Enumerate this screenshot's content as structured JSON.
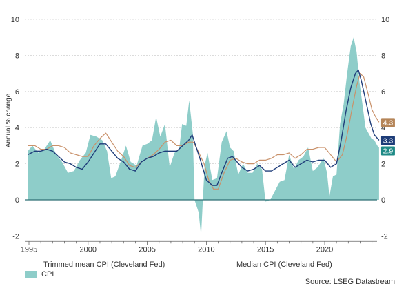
{
  "chart_data": {
    "type": "line",
    "ylabel": "Annual % change",
    "ylim": [
      -2.3,
      10.2
    ],
    "yticks": [
      "-2",
      "0",
      "2",
      "4",
      "6",
      "8",
      "10"
    ],
    "xticks": [
      "1995",
      "2000",
      "2005",
      "2010",
      "2015",
      "2020"
    ],
    "grid": true,
    "legend_position": "bottom",
    "source": "Source: LSEG Datastream",
    "colors": {
      "trimmed": "#1f3d7a",
      "median": "#c9916a",
      "cpi": "#8ecdc9",
      "zero": "#2f6f75"
    },
    "series": [
      {
        "name": "CPI",
        "kind": "area",
        "points": [
          [
            1994.9,
            2.7
          ],
          [
            1995.3,
            3.0
          ],
          [
            1995.8,
            2.6
          ],
          [
            1996.3,
            2.8
          ],
          [
            1996.8,
            3.3
          ],
          [
            1997.3,
            2.5
          ],
          [
            1997.8,
            2.1
          ],
          [
            1998.3,
            1.5
          ],
          [
            1998.8,
            1.6
          ],
          [
            1999.3,
            2.2
          ],
          [
            1999.8,
            2.6
          ],
          [
            2000.2,
            3.6
          ],
          [
            2000.7,
            3.5
          ],
          [
            2001.2,
            3.3
          ],
          [
            2001.6,
            2.7
          ],
          [
            2001.95,
            1.2
          ],
          [
            2002.3,
            1.3
          ],
          [
            2002.8,
            2.2
          ],
          [
            2003.2,
            3.0
          ],
          [
            2003.6,
            2.1
          ],
          [
            2004.1,
            1.9
          ],
          [
            2004.6,
            3.0
          ],
          [
            2005.0,
            3.1
          ],
          [
            2005.4,
            3.3
          ],
          [
            2005.75,
            4.6
          ],
          [
            2006.1,
            3.5
          ],
          [
            2006.5,
            4.2
          ],
          [
            2006.9,
            1.8
          ],
          [
            2007.3,
            2.6
          ],
          [
            2007.7,
            2.8
          ],
          [
            2007.95,
            4.2
          ],
          [
            2008.3,
            4.1
          ],
          [
            2008.55,
            5.5
          ],
          [
            2008.85,
            3.7
          ],
          [
            2009.0,
            0.0
          ],
          [
            2009.35,
            -0.7
          ],
          [
            2009.55,
            -2.0
          ],
          [
            2009.85,
            1.9
          ],
          [
            2010.1,
            2.6
          ],
          [
            2010.5,
            1.1
          ],
          [
            2010.9,
            1.2
          ],
          [
            2011.3,
            3.2
          ],
          [
            2011.7,
            3.8
          ],
          [
            2012.0,
            2.9
          ],
          [
            2012.3,
            2.7
          ],
          [
            2012.7,
            1.4
          ],
          [
            2013.1,
            2.0
          ],
          [
            2013.5,
            1.5
          ],
          [
            2013.9,
            1.5
          ],
          [
            2014.3,
            2.0
          ],
          [
            2014.7,
            1.7
          ],
          [
            2015.0,
            -0.1
          ],
          [
            2015.4,
            0.0
          ],
          [
            2015.8,
            0.5
          ],
          [
            2016.2,
            1.0
          ],
          [
            2016.6,
            1.1
          ],
          [
            2017.0,
            2.5
          ],
          [
            2017.4,
            1.7
          ],
          [
            2017.8,
            2.2
          ],
          [
            2018.2,
            2.4
          ],
          [
            2018.6,
            2.9
          ],
          [
            2019.0,
            1.6
          ],
          [
            2019.4,
            1.8
          ],
          [
            2019.9,
            2.3
          ],
          [
            2020.2,
            1.5
          ],
          [
            2020.4,
            0.2
          ],
          [
            2020.7,
            1.3
          ],
          [
            2021.0,
            1.4
          ],
          [
            2021.3,
            4.2
          ],
          [
            2021.6,
            5.3
          ],
          [
            2021.9,
            7.0
          ],
          [
            2022.2,
            8.5
          ],
          [
            2022.45,
            9.0
          ],
          [
            2022.7,
            8.2
          ],
          [
            2022.95,
            6.5
          ],
          [
            2023.25,
            5.0
          ],
          [
            2023.45,
            4.0
          ],
          [
            2023.7,
            3.7
          ],
          [
            2023.95,
            3.4
          ],
          [
            2024.2,
            3.3
          ],
          [
            2024.45,
            3.0
          ],
          [
            2024.6,
            2.9
          ]
        ]
      },
      {
        "name": "Trimmed mean CPI (Cleveland Fed)",
        "kind": "line",
        "points": [
          [
            1994.9,
            2.5
          ],
          [
            1995.5,
            2.7
          ],
          [
            1996.0,
            2.7
          ],
          [
            1996.5,
            2.8
          ],
          [
            1997.0,
            2.7
          ],
          [
            1997.5,
            2.4
          ],
          [
            1998.0,
            2.1
          ],
          [
            1998.5,
            2.0
          ],
          [
            1999.0,
            1.8
          ],
          [
            1999.5,
            1.7
          ],
          [
            2000.0,
            2.1
          ],
          [
            2000.5,
            2.6
          ],
          [
            2001.0,
            3.1
          ],
          [
            2001.5,
            3.1
          ],
          [
            2002.0,
            2.7
          ],
          [
            2002.5,
            2.3
          ],
          [
            2003.0,
            2.1
          ],
          [
            2003.5,
            1.7
          ],
          [
            2004.0,
            1.6
          ],
          [
            2004.5,
            2.1
          ],
          [
            2005.0,
            2.3
          ],
          [
            2005.5,
            2.4
          ],
          [
            2006.0,
            2.6
          ],
          [
            2006.5,
            2.7
          ],
          [
            2007.0,
            2.7
          ],
          [
            2007.5,
            2.7
          ],
          [
            2008.0,
            3.0
          ],
          [
            2008.5,
            3.3
          ],
          [
            2008.8,
            3.6
          ],
          [
            2009.0,
            3.2
          ],
          [
            2009.5,
            2.2
          ],
          [
            2010.0,
            1.1
          ],
          [
            2010.5,
            0.8
          ],
          [
            2010.9,
            0.8
          ],
          [
            2011.3,
            1.5
          ],
          [
            2011.8,
            2.3
          ],
          [
            2012.2,
            2.4
          ],
          [
            2012.6,
            2.1
          ],
          [
            2013.0,
            1.8
          ],
          [
            2013.5,
            1.6
          ],
          [
            2014.0,
            1.7
          ],
          [
            2014.5,
            1.9
          ],
          [
            2015.0,
            1.6
          ],
          [
            2015.5,
            1.6
          ],
          [
            2016.0,
            1.8
          ],
          [
            2016.5,
            2.0
          ],
          [
            2017.0,
            2.2
          ],
          [
            2017.5,
            1.8
          ],
          [
            2018.0,
            2.0
          ],
          [
            2018.5,
            2.2
          ],
          [
            2019.0,
            2.1
          ],
          [
            2019.5,
            2.2
          ],
          [
            2020.0,
            2.2
          ],
          [
            2020.5,
            1.8
          ],
          [
            2021.0,
            2.0
          ],
          [
            2021.4,
            3.3
          ],
          [
            2021.8,
            4.9
          ],
          [
            2022.2,
            6.2
          ],
          [
            2022.6,
            7.0
          ],
          [
            2022.85,
            7.2
          ],
          [
            2023.1,
            6.6
          ],
          [
            2023.5,
            5.4
          ],
          [
            2023.9,
            4.2
          ],
          [
            2024.2,
            3.6
          ],
          [
            2024.6,
            3.3
          ]
        ]
      },
      {
        "name": "Median CPI (Cleveland Fed)",
        "kind": "line",
        "points": [
          [
            1994.9,
            3.0
          ],
          [
            1995.5,
            3.0
          ],
          [
            1996.0,
            2.8
          ],
          [
            1996.5,
            2.8
          ],
          [
            1997.0,
            3.0
          ],
          [
            1997.5,
            3.0
          ],
          [
            1998.0,
            2.9
          ],
          [
            1998.5,
            2.6
          ],
          [
            1999.0,
            2.5
          ],
          [
            1999.5,
            2.4
          ],
          [
            2000.0,
            2.4
          ],
          [
            2000.5,
            3.0
          ],
          [
            2001.0,
            3.4
          ],
          [
            2001.5,
            3.7
          ],
          [
            2002.0,
            3.2
          ],
          [
            2002.5,
            2.7
          ],
          [
            2003.0,
            2.4
          ],
          [
            2003.5,
            1.9
          ],
          [
            2004.0,
            1.8
          ],
          [
            2004.5,
            2.1
          ],
          [
            2005.0,
            2.3
          ],
          [
            2005.5,
            2.5
          ],
          [
            2006.0,
            2.8
          ],
          [
            2006.5,
            3.2
          ],
          [
            2007.0,
            3.3
          ],
          [
            2007.5,
            3.0
          ],
          [
            2008.0,
            3.0
          ],
          [
            2008.5,
            3.2
          ],
          [
            2008.9,
            3.2
          ],
          [
            2009.3,
            2.7
          ],
          [
            2009.8,
            2.0
          ],
          [
            2010.2,
            1.1
          ],
          [
            2010.6,
            0.6
          ],
          [
            2011.0,
            0.6
          ],
          [
            2011.5,
            1.5
          ],
          [
            2012.0,
            2.2
          ],
          [
            2012.5,
            2.3
          ],
          [
            2013.0,
            2.1
          ],
          [
            2013.5,
            2.0
          ],
          [
            2014.0,
            2.0
          ],
          [
            2014.5,
            2.2
          ],
          [
            2015.0,
            2.2
          ],
          [
            2015.5,
            2.3
          ],
          [
            2016.0,
            2.5
          ],
          [
            2016.5,
            2.5
          ],
          [
            2017.0,
            2.6
          ],
          [
            2017.5,
            2.3
          ],
          [
            2018.0,
            2.5
          ],
          [
            2018.5,
            2.8
          ],
          [
            2019.0,
            2.8
          ],
          [
            2019.5,
            2.9
          ],
          [
            2020.0,
            2.9
          ],
          [
            2020.5,
            2.5
          ],
          [
            2021.0,
            2.1
          ],
          [
            2021.5,
            2.5
          ],
          [
            2021.9,
            3.6
          ],
          [
            2022.3,
            5.0
          ],
          [
            2022.7,
            6.3
          ],
          [
            2023.0,
            7.0
          ],
          [
            2023.3,
            6.8
          ],
          [
            2023.7,
            5.8
          ],
          [
            2024.0,
            5.0
          ],
          [
            2024.3,
            4.6
          ],
          [
            2024.6,
            4.3
          ]
        ]
      }
    ],
    "end_labels": [
      {
        "series": "Median CPI (Cleveland Fed)",
        "text": "4.3",
        "value": 4.3,
        "color": "#b58558"
      },
      {
        "series": "Trimmed mean CPI (Cleveland Fed)",
        "text": "3.3",
        "value": 3.3,
        "color": "#1d3c78"
      },
      {
        "series": "CPI",
        "text": "2.9",
        "value": 2.9,
        "color": "#1f8a86"
      }
    ]
  }
}
